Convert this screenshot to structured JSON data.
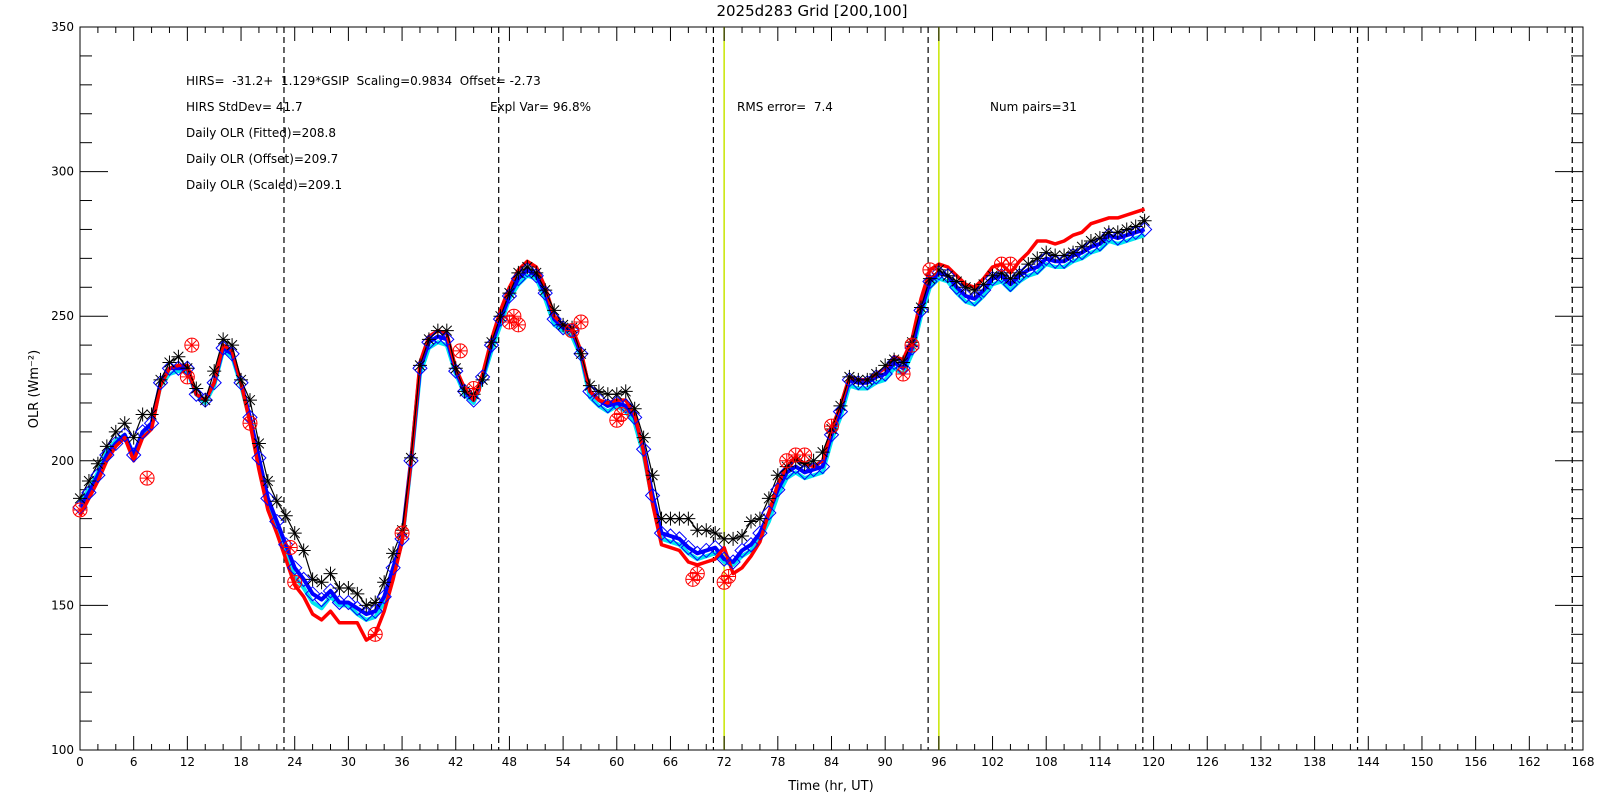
{
  "chart_data": {
    "type": "line",
    "title": "2025d283 Grid [200,100]",
    "xlabel": "Time (hr, UT)",
    "ylabel": "OLR (Wm⁻²)",
    "xlim": [
      0,
      168
    ],
    "ylim": [
      100,
      350
    ],
    "x_ticks": [
      0,
      6,
      12,
      18,
      24,
      30,
      36,
      42,
      48,
      54,
      60,
      66,
      72,
      78,
      84,
      90,
      96,
      102,
      108,
      114,
      120,
      126,
      132,
      138,
      144,
      150,
      156,
      162,
      168
    ],
    "y_ticks": [
      100,
      150,
      200,
      250,
      300,
      350
    ],
    "grid": false,
    "annotations": [
      "HIRS=  -31.2+  1.129*GSIP  Scaling=0.9834  Offset= -2.73",
      "HIRS StdDev= 41.7",
      "Expl Var= 96.8%",
      "RMS error=  7.4",
      "Num pairs=31",
      "Daily OLR (Fitted)=208.8",
      "Daily OLR (Offset)=209.7",
      "Daily OLR (Scaled)=209.1"
    ],
    "dashed_vlines": [
      22.8,
      46.8,
      70.8,
      94.8,
      118.8,
      142.8,
      166.8
    ],
    "yellow_vlines": [
      72,
      96
    ],
    "x": [
      0,
      1,
      2,
      3,
      4,
      5,
      6,
      7,
      8,
      9,
      10,
      11,
      12,
      13,
      14,
      15,
      16,
      17,
      18,
      19,
      20,
      21,
      22,
      23,
      24,
      25,
      26,
      27,
      28,
      29,
      30,
      31,
      32,
      33,
      34,
      35,
      36,
      37,
      38,
      39,
      40,
      41,
      42,
      43,
      44,
      45,
      46,
      47,
      48,
      49,
      50,
      51,
      52,
      53,
      54,
      55,
      56,
      57,
      58,
      59,
      60,
      61,
      62,
      63,
      64,
      65,
      66,
      67,
      68,
      69,
      70,
      71,
      72,
      73,
      74,
      75,
      76,
      77,
      78,
      79,
      80,
      81,
      82,
      83,
      84,
      85,
      86,
      87,
      88,
      89,
      90,
      91,
      92,
      93,
      94,
      95,
      96,
      97,
      98,
      99,
      100,
      101,
      102,
      103,
      104,
      105,
      106,
      107,
      108,
      109,
      110,
      111,
      112,
      113,
      114,
      115,
      116,
      117,
      118,
      119
    ],
    "series": [
      {
        "color": "#000000",
        "marker": "asterisk",
        "values": [
          187,
          193,
          199,
          205,
          210,
          213,
          208,
          216,
          216,
          228,
          234,
          236,
          232,
          225,
          221,
          231,
          242,
          240,
          228,
          221,
          206,
          193,
          186,
          181,
          175,
          169,
          159,
          158,
          161,
          156,
          156,
          154,
          150,
          151,
          158,
          168,
          176,
          201,
          233,
          242,
          245,
          245,
          232,
          224,
          223,
          228,
          241,
          250,
          258,
          265,
          267,
          265,
          259,
          252,
          247,
          246,
          237,
          226,
          224,
          223,
          223,
          224,
          218,
          208,
          195,
          180,
          180,
          180,
          180,
          176,
          176,
          175,
          173,
          173,
          174,
          179,
          180,
          187,
          195,
          198,
          200,
          199,
          200,
          203,
          211,
          219,
          229,
          228,
          228,
          230,
          233,
          235,
          234,
          241,
          253,
          263,
          266,
          264,
          262,
          260,
          259,
          261,
          264,
          265,
          263,
          265,
          268,
          270,
          272,
          271,
          271,
          272,
          274,
          276,
          277,
          279,
          279,
          280,
          281,
          283
        ]
      },
      {
        "color": "#00e5ee",
        "marker": "none",
        "values": [
          186,
          190,
          196,
          203,
          207,
          209,
          202,
          209,
          212,
          226,
          230,
          231,
          231,
          223,
          220,
          226,
          238,
          236,
          226,
          214,
          200,
          186,
          177,
          169,
          160,
          156,
          151,
          149,
          153,
          150,
          150,
          147,
          145,
          146,
          151,
          161,
          172,
          199,
          230,
          239,
          241,
          240,
          230,
          223,
          220,
          228,
          238,
          247,
          256,
          261,
          264,
          263,
          256,
          247,
          245,
          243,
          236,
          222,
          219,
          217,
          219,
          217,
          213,
          202,
          186,
          173,
          172,
          171,
          168,
          166,
          167,
          168,
          165,
          164,
          167,
          169,
          173,
          179,
          188,
          194,
          196,
          194,
          195,
          196,
          207,
          215,
          226,
          225,
          225,
          227,
          228,
          232,
          230,
          237,
          250,
          260,
          263,
          262,
          258,
          255,
          254,
          257,
          261,
          262,
          259,
          262,
          264,
          265,
          268,
          267,
          267,
          269,
          270,
          272,
          273,
          276,
          275,
          276,
          277,
          278
        ]
      },
      {
        "color": "#0000ff",
        "marker": "diamond",
        "values": [
          184,
          189,
          195,
          202,
          206,
          209,
          202,
          210,
          213,
          227,
          232,
          232,
          232,
          223,
          221,
          227,
          239,
          237,
          227,
          215,
          201,
          187,
          179,
          171,
          163,
          159,
          154,
          152,
          155,
          151,
          151,
          149,
          147,
          148,
          153,
          163,
          173,
          200,
          232,
          241,
          243,
          242,
          231,
          224,
          221,
          229,
          240,
          249,
          257,
          263,
          266,
          264,
          258,
          249,
          246,
          245,
          237,
          224,
          221,
          219,
          220,
          219,
          215,
          204,
          188,
          175,
          174,
          173,
          170,
          168,
          169,
          170,
          166,
          165,
          169,
          171,
          175,
          182,
          190,
          196,
          198,
          196,
          197,
          198,
          209,
          217,
          228,
          227,
          227,
          229,
          230,
          234,
          232,
          239,
          252,
          262,
          265,
          264,
          260,
          257,
          256,
          259,
          263,
          264,
          261,
          264,
          266,
          267,
          270,
          269,
          269,
          271,
          272,
          274,
          275,
          278,
          277,
          278,
          279,
          280
        ]
      },
      {
        "color": "#ff0000",
        "marker": "none",
        "values": [
          181,
          187,
          193,
          200,
          205,
          208,
          200,
          208,
          211,
          226,
          232,
          233,
          233,
          223,
          221,
          227,
          240,
          238,
          227,
          213,
          197,
          183,
          175,
          166,
          157,
          153,
          147,
          145,
          148,
          144,
          144,
          144,
          138,
          140,
          148,
          159,
          172,
          200,
          234,
          243,
          245,
          244,
          232,
          225,
          221,
          230,
          242,
          252,
          260,
          266,
          269,
          267,
          260,
          250,
          247,
          246,
          238,
          224,
          221,
          220,
          221,
          221,
          216,
          203,
          185,
          171,
          170,
          169,
          165,
          164,
          165,
          166,
          170,
          161,
          163,
          167,
          172,
          182,
          192,
          198,
          201,
          199,
          198,
          200,
          211,
          219,
          229,
          228,
          228,
          230,
          232,
          236,
          235,
          242,
          256,
          266,
          268,
          267,
          264,
          261,
          260,
          263,
          267,
          268,
          265,
          269,
          272,
          276,
          276,
          275,
          276,
          278,
          279,
          282,
          283,
          284,
          284,
          285,
          286,
          287
        ]
      }
    ],
    "hirs_points": {
      "color": "#ff0000",
      "marker": "asterisk-circle",
      "x": [
        0,
        7.5,
        12,
        12.5,
        19,
        23.5,
        24,
        33,
        36,
        42.5,
        44,
        48,
        48.5,
        49,
        55,
        56,
        60,
        60.5,
        68.5,
        69,
        72,
        72.5,
        79,
        80,
        81,
        84,
        92,
        93,
        95,
        103,
        104
      ],
      "y": [
        183,
        194,
        229,
        240,
        213,
        170,
        158,
        140,
        175,
        238,
        225,
        248,
        250,
        247,
        245,
        248,
        214,
        216,
        159,
        161,
        158,
        160,
        200,
        202,
        202,
        212,
        230,
        240,
        266,
        268,
        268
      ]
    }
  }
}
